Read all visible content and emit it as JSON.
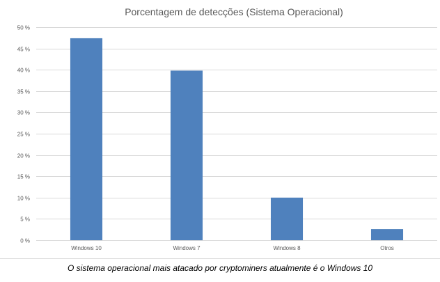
{
  "chart_data": {
    "type": "bar",
    "title": "Porcentagem de detecções (Sistema Operacional)",
    "categories": [
      "Windows 10",
      "Windows 7",
      "Windows 8",
      "Otros"
    ],
    "values": [
      47.4,
      39.8,
      10.0,
      2.6
    ],
    "ylim": [
      0,
      50
    ],
    "yticks": [
      0,
      5,
      10,
      15,
      20,
      25,
      30,
      35,
      40,
      45,
      50
    ],
    "ytick_labels": [
      "0 %",
      "5 %",
      "10 %",
      "15 %",
      "20 %",
      "25 %",
      "30 %",
      "35 %",
      "40 %",
      "45 %",
      "50 %"
    ],
    "xlabel": "",
    "ylabel": "",
    "grid": true,
    "bar_color": "#4f81bd",
    "grid_color": "#d9d9d9",
    "title_color": "#595959",
    "tick_color": "#595959"
  },
  "caption": "O sistema operacional mais atacado por cryptominers atualmente é o Windows 10"
}
